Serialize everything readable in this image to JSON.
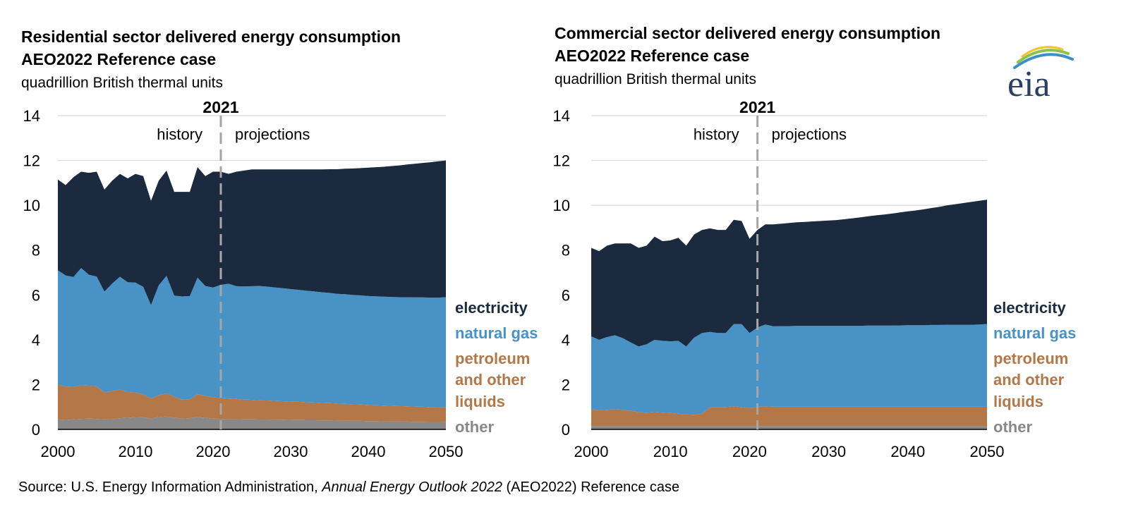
{
  "colors": {
    "electricity": "#1b2a3e",
    "natural_gas": "#4892c6",
    "petroleum": "#b37748",
    "other": "#888888",
    "gridline": "#d9d9d9",
    "divider": "#a6a6a6",
    "title": "#000000"
  },
  "logo": {
    "text": "eia",
    "icon": "eia-logo-icon"
  },
  "source": {
    "prefix": "Source: U.S. Energy Information Administration, ",
    "italic": "Annual Energy Outlook 2022",
    "suffix": " (AEO2022) Reference case"
  },
  "chart_data": [
    {
      "type": "area",
      "stacked": true,
      "title": "Residential sector delivered energy consumption",
      "subtitle": "AEO2022 Reference case",
      "units": "quadrillion British thermal units",
      "xlabel": "",
      "ylabel": "",
      "xlim": [
        2000,
        2050
      ],
      "ylim": [
        0,
        14
      ],
      "xticks": [
        "2000",
        "2010",
        "2020",
        "2030",
        "2040",
        "2050"
      ],
      "yticks": [
        "0",
        "2",
        "4",
        "6",
        "8",
        "10",
        "12",
        "14"
      ],
      "grid": true,
      "divider": {
        "year": 2021,
        "label": "2021",
        "left_label": "history",
        "right_label": "projections"
      },
      "x": [
        2000,
        2001,
        2002,
        2003,
        2004,
        2005,
        2006,
        2007,
        2008,
        2009,
        2010,
        2011,
        2012,
        2013,
        2014,
        2015,
        2016,
        2017,
        2018,
        2019,
        2020,
        2021,
        2022,
        2023,
        2024,
        2025,
        2026,
        2027,
        2028,
        2029,
        2030,
        2031,
        2032,
        2033,
        2034,
        2035,
        2036,
        2037,
        2038,
        2039,
        2040,
        2041,
        2042,
        2043,
        2044,
        2045,
        2046,
        2047,
        2048,
        2049,
        2050
      ],
      "series": [
        {
          "name": "other",
          "label": "other",
          "values": [
            0.45,
            0.42,
            0.45,
            0.47,
            0.48,
            0.47,
            0.45,
            0.46,
            0.5,
            0.52,
            0.55,
            0.54,
            0.48,
            0.55,
            0.58,
            0.52,
            0.48,
            0.5,
            0.55,
            0.52,
            0.48,
            0.47,
            0.46,
            0.46,
            0.45,
            0.45,
            0.44,
            0.44,
            0.43,
            0.43,
            0.42,
            0.42,
            0.41,
            0.41,
            0.4,
            0.4,
            0.39,
            0.39,
            0.38,
            0.38,
            0.37,
            0.37,
            0.36,
            0.36,
            0.35,
            0.35,
            0.34,
            0.34,
            0.33,
            0.33,
            0.32
          ]
        },
        {
          "name": "petroleum",
          "label": "petroleum and other liquids",
          "values": [
            1.55,
            1.5,
            1.45,
            1.5,
            1.47,
            1.45,
            1.2,
            1.25,
            1.28,
            1.15,
            1.1,
            1.02,
            0.9,
            0.98,
            1.02,
            0.95,
            0.85,
            0.85,
            1.02,
            0.98,
            0.95,
            0.93,
            0.92,
            0.9,
            0.88,
            0.87,
            0.86,
            0.85,
            0.84,
            0.83,
            0.82,
            0.81,
            0.8,
            0.79,
            0.78,
            0.77,
            0.76,
            0.75,
            0.74,
            0.73,
            0.72,
            0.71,
            0.7,
            0.69,
            0.69,
            0.68,
            0.68,
            0.67,
            0.67,
            0.66,
            0.66
          ]
        },
        {
          "name": "natural_gas",
          "label": "natural gas",
          "values": [
            5.1,
            4.95,
            4.9,
            5.23,
            4.95,
            4.9,
            4.5,
            4.8,
            5.03,
            4.9,
            4.9,
            4.8,
            4.17,
            4.9,
            5.25,
            4.5,
            4.6,
            4.6,
            5.2,
            4.9,
            4.9,
            5.05,
            5.12,
            5.03,
            5.05,
            5.07,
            5.1,
            5.08,
            5.06,
            5.04,
            5.02,
            5.0,
            4.98,
            4.96,
            4.94,
            4.92,
            4.9,
            4.89,
            4.88,
            4.87,
            4.86,
            4.86,
            4.86,
            4.86,
            4.86,
            4.87,
            4.87,
            4.88,
            4.88,
            4.89,
            4.92
          ]
        },
        {
          "name": "electricity",
          "label": "electricity",
          "values": [
            4.05,
            4.03,
            4.45,
            4.3,
            4.55,
            4.68,
            4.55,
            4.59,
            4.59,
            4.63,
            4.85,
            4.94,
            4.65,
            4.67,
            4.7,
            4.63,
            4.67,
            4.65,
            4.93,
            4.9,
            5.17,
            5.05,
            4.9,
            5.11,
            5.17,
            5.21,
            5.2,
            5.23,
            5.27,
            5.3,
            5.34,
            5.37,
            5.41,
            5.44,
            5.48,
            5.52,
            5.56,
            5.6,
            5.64,
            5.68,
            5.73,
            5.76,
            5.8,
            5.84,
            5.88,
            5.92,
            5.96,
            6.0,
            6.04,
            6.08,
            6.1
          ]
        }
      ]
    },
    {
      "type": "area",
      "stacked": true,
      "title": "Commercial sector delivered energy consumption",
      "subtitle": "AEO2022 Reference case",
      "units": "quadrillion British thermal units",
      "xlabel": "",
      "ylabel": "",
      "xlim": [
        2000,
        2050
      ],
      "ylim": [
        0,
        14
      ],
      "xticks": [
        "2000",
        "2010",
        "2020",
        "2030",
        "2040",
        "2050"
      ],
      "yticks": [
        "0",
        "2",
        "4",
        "6",
        "8",
        "10",
        "12",
        "14"
      ],
      "grid": true,
      "divider": {
        "year": 2021,
        "label": "2021",
        "left_label": "history",
        "right_label": "projections"
      },
      "x": [
        2000,
        2001,
        2002,
        2003,
        2004,
        2005,
        2006,
        2007,
        2008,
        2009,
        2010,
        2011,
        2012,
        2013,
        2014,
        2015,
        2016,
        2017,
        2018,
        2019,
        2020,
        2021,
        2022,
        2023,
        2024,
        2025,
        2026,
        2027,
        2028,
        2029,
        2030,
        2031,
        2032,
        2033,
        2034,
        2035,
        2036,
        2037,
        2038,
        2039,
        2040,
        2041,
        2042,
        2043,
        2044,
        2045,
        2046,
        2047,
        2048,
        2049,
        2050
      ],
      "series": [
        {
          "name": "other",
          "label": "other",
          "values": [
            0.15,
            0.15,
            0.15,
            0.15,
            0.15,
            0.15,
            0.15,
            0.15,
            0.15,
            0.15,
            0.15,
            0.15,
            0.15,
            0.15,
            0.15,
            0.15,
            0.15,
            0.15,
            0.15,
            0.15,
            0.15,
            0.15,
            0.15,
            0.15,
            0.15,
            0.15,
            0.15,
            0.15,
            0.15,
            0.15,
            0.15,
            0.15,
            0.15,
            0.15,
            0.15,
            0.15,
            0.15,
            0.15,
            0.15,
            0.15,
            0.15,
            0.15,
            0.15,
            0.15,
            0.15,
            0.15,
            0.15,
            0.15,
            0.15,
            0.15,
            0.15
          ]
        },
        {
          "name": "petroleum",
          "label": "petroleum and other liquids",
          "values": [
            0.75,
            0.7,
            0.72,
            0.75,
            0.72,
            0.68,
            0.62,
            0.6,
            0.62,
            0.6,
            0.58,
            0.55,
            0.52,
            0.5,
            0.55,
            0.85,
            0.85,
            0.85,
            0.88,
            0.85,
            0.8,
            0.85,
            0.88,
            0.86,
            0.86,
            0.86,
            0.86,
            0.86,
            0.86,
            0.86,
            0.86,
            0.86,
            0.86,
            0.86,
            0.86,
            0.86,
            0.86,
            0.86,
            0.86,
            0.86,
            0.86,
            0.86,
            0.86,
            0.86,
            0.86,
            0.86,
            0.86,
            0.86,
            0.86,
            0.86,
            0.86
          ]
        },
        {
          "name": "natural_gas",
          "label": "natural gas",
          "values": [
            3.25,
            3.15,
            3.25,
            3.3,
            3.2,
            3.05,
            2.93,
            3.05,
            3.23,
            3.2,
            3.2,
            3.25,
            3.03,
            3.45,
            3.6,
            3.35,
            3.3,
            3.3,
            3.67,
            3.7,
            3.35,
            3.55,
            3.65,
            3.59,
            3.6,
            3.6,
            3.61,
            3.61,
            3.61,
            3.61,
            3.61,
            3.61,
            3.61,
            3.61,
            3.61,
            3.62,
            3.62,
            3.62,
            3.62,
            3.63,
            3.64,
            3.64,
            3.64,
            3.65,
            3.65,
            3.66,
            3.66,
            3.66,
            3.66,
            3.67,
            3.69
          ]
        },
        {
          "name": "electricity",
          "label": "electricity",
          "values": [
            3.95,
            3.95,
            4.08,
            4.1,
            4.23,
            4.42,
            4.4,
            4.4,
            4.6,
            4.45,
            4.5,
            4.6,
            4.5,
            4.6,
            4.6,
            4.62,
            4.6,
            4.6,
            4.65,
            4.6,
            4.2,
            4.35,
            4.47,
            4.55,
            4.57,
            4.6,
            4.62,
            4.64,
            4.66,
            4.68,
            4.7,
            4.72,
            4.76,
            4.8,
            4.84,
            4.88,
            4.92,
            4.96,
            5.0,
            5.04,
            5.08,
            5.12,
            5.17,
            5.22,
            5.27,
            5.33,
            5.38,
            5.43,
            5.48,
            5.52,
            5.55
          ]
        }
      ]
    }
  ]
}
